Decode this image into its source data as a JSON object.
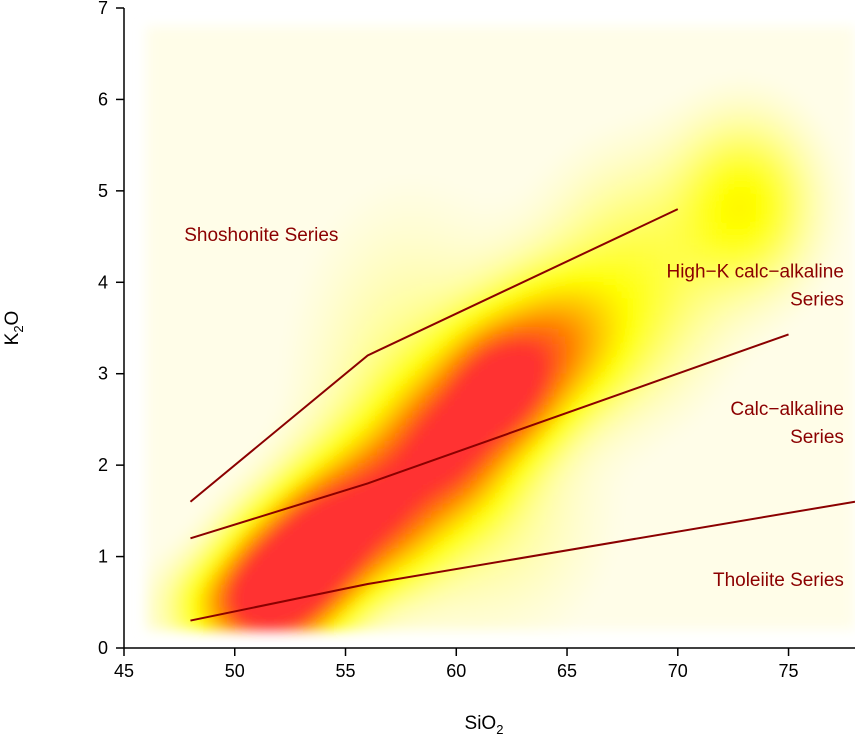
{
  "chart_data": {
    "type": "line",
    "title": "",
    "xlabel": {
      "main": "SiO",
      "sub": "2"
    },
    "ylabel": {
      "pre": "K",
      "sub": "2",
      "post": "O"
    },
    "xlim": [
      45,
      78
    ],
    "ylim": [
      0,
      7
    ],
    "x_ticks": [
      45,
      50,
      55,
      60,
      65,
      70,
      75
    ],
    "y_ticks": [
      0,
      1,
      2,
      3,
      4,
      5,
      6,
      7
    ],
    "grid": false,
    "line_color": "#8b0000",
    "boundaries": [
      {
        "points": [
          [
            48,
            1.6
          ],
          [
            56,
            3.2
          ],
          [
            70,
            4.8
          ]
        ]
      },
      {
        "points": [
          [
            48,
            1.2
          ],
          [
            56,
            1.8
          ],
          [
            75,
            3.43
          ]
        ]
      },
      {
        "points": [
          [
            48,
            0.3
          ],
          [
            56,
            0.7
          ],
          [
            78,
            1.6
          ]
        ]
      }
    ],
    "series_labels": [
      {
        "lines": [
          "Shoshonite Series"
        ],
        "x": 51.2,
        "y": 4.45,
        "anchor": "middle"
      },
      {
        "lines": [
          "High−K calc−alkaline",
          "Series"
        ],
        "x": 77.5,
        "y": 4.05,
        "anchor": "end"
      },
      {
        "lines": [
          "Calc−alkaline",
          "Series"
        ],
        "x": 77.5,
        "y": 2.55,
        "anchor": "end"
      },
      {
        "lines": [
          "Tholeiite Series"
        ],
        "x": 77.5,
        "y": 0.68,
        "anchor": "end"
      }
    ],
    "density": {
      "colors": {
        "low": "#fffde8",
        "mid": "#ffff00",
        "high": "#ff8000",
        "peak": "#ff3030"
      },
      "blobs": [
        {
          "x": 52.0,
          "y": 0.75,
          "sx": 1.6,
          "sy": 0.45,
          "w": 1.0
        },
        {
          "x": 54.0,
          "y": 1.15,
          "sx": 1.5,
          "sy": 0.45,
          "w": 0.95
        },
        {
          "x": 56.5,
          "y": 1.55,
          "sx": 1.8,
          "sy": 0.5,
          "w": 0.8
        },
        {
          "x": 59.5,
          "y": 2.2,
          "sx": 1.8,
          "sy": 0.5,
          "w": 0.82
        },
        {
          "x": 62.0,
          "y": 2.85,
          "sx": 1.7,
          "sy": 0.45,
          "w": 0.95
        },
        {
          "x": 64.5,
          "y": 3.35,
          "sx": 2.0,
          "sy": 0.5,
          "w": 0.55
        },
        {
          "x": 50.5,
          "y": 0.45,
          "sx": 2.0,
          "sy": 0.35,
          "w": 0.6
        },
        {
          "x": 73.0,
          "y": 4.85,
          "sx": 2.0,
          "sy": 0.6,
          "w": 0.35
        },
        {
          "x": 68.0,
          "y": 4.0,
          "sx": 2.5,
          "sy": 0.8,
          "w": 0.25
        },
        {
          "x": 58.0,
          "y": 2.8,
          "sx": 3.0,
          "sy": 1.2,
          "w": 0.15
        },
        {
          "x": 62.0,
          "y": 1.4,
          "sx": 3.0,
          "sy": 0.8,
          "w": 0.1
        }
      ]
    }
  }
}
